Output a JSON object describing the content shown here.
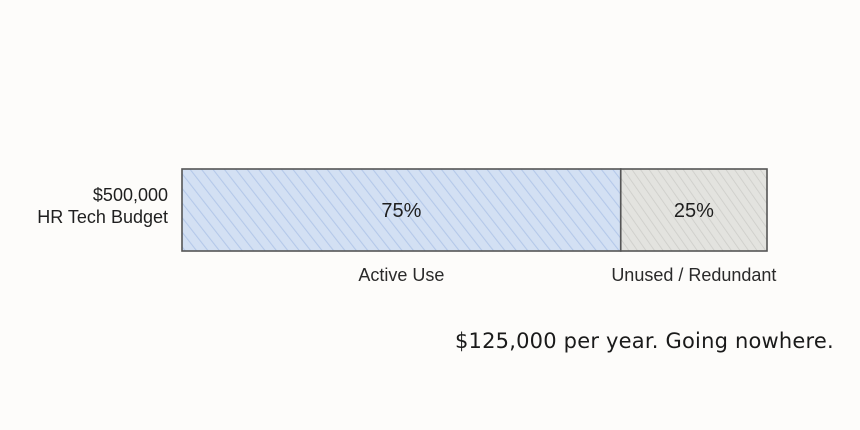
{
  "chart_data": {
    "type": "bar",
    "orientation": "horizontal",
    "stacked": true,
    "total_label_amount": "$500,000",
    "total_label_text": "HR Tech Budget",
    "categories": [
      "Active Use",
      "Unused / Redundant"
    ],
    "values": [
      75,
      25
    ],
    "value_labels": [
      "75%",
      "25%"
    ],
    "colors": [
      "#c9d8ef",
      "#dcdcd8"
    ],
    "xlim": [
      0,
      100
    ],
    "grid": false,
    "legend": "none",
    "annotation": "$125,000 per year. Going nowhere."
  }
}
